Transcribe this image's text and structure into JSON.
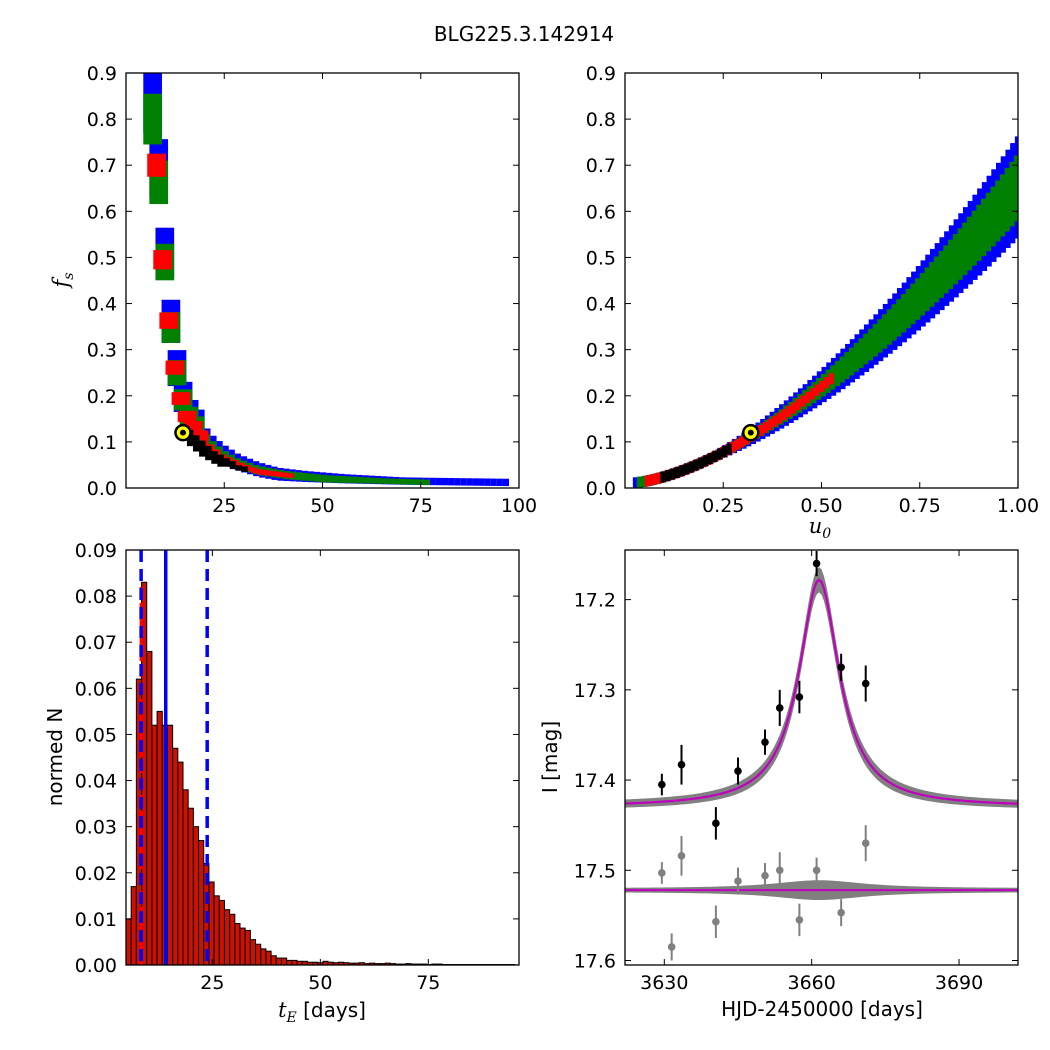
{
  "figure_title": "BLG225.3.142914",
  "colors": {
    "blue": "#0000ff",
    "green": "#008000",
    "red": "#ff0000",
    "black": "#000000",
    "best_fit_marker_fill": "#ffff00",
    "hist_bar": "#cc1100",
    "model_band": "#808080",
    "model_line": "#bf00bf",
    "residual_points": "#808080"
  },
  "chart_data": [
    {
      "type": "heatmap",
      "panel": "top-left",
      "xlabel": "",
      "ylabel_main": "f",
      "ylabel_sub": "s",
      "xlim": [
        0,
        100
      ],
      "ylim": [
        0.0,
        0.9
      ],
      "xticks": [
        25,
        50,
        75,
        100
      ],
      "yticks": [
        0.0,
        0.1,
        0.2,
        0.3,
        0.4,
        0.5,
        0.6,
        0.7,
        0.8,
        0.9
      ],
      "ytick_labels": [
        "0.0",
        "0.1",
        "0.2",
        "0.3",
        "0.4",
        "0.5",
        "0.6",
        "0.7",
        "0.8",
        "0.9"
      ],
      "best_fit": {
        "x": 14.5,
        "y": 0.12
      },
      "regions": [
        {
          "level": "3sigma",
          "color": "blue",
          "curve": [
            [
              6,
              0.85
            ],
            [
              7,
              0.78
            ],
            [
              8,
              0.62
            ],
            [
              9,
              0.52
            ],
            [
              10,
              0.42
            ],
            [
              11,
              0.33
            ],
            [
              12,
              0.27
            ],
            [
              13,
              0.22
            ],
            [
              14,
              0.19
            ],
            [
              15,
              0.165
            ],
            [
              17,
              0.14
            ],
            [
              19,
              0.115
            ],
            [
              21,
              0.095
            ],
            [
              24,
              0.075
            ],
            [
              28,
              0.055
            ],
            [
              33,
              0.04
            ],
            [
              38,
              0.03
            ],
            [
              45,
              0.025
            ],
            [
              55,
              0.02
            ],
            [
              70,
              0.015
            ],
            [
              97,
              0.012
            ]
          ],
          "half_width": [
            0.08,
            0.07,
            0.06,
            0.055,
            0.05,
            0.045,
            0.04,
            0.035,
            0.032,
            0.03,
            0.028,
            0.025,
            0.022,
            0.02,
            0.018,
            0.016,
            0.014,
            0.012,
            0.01,
            0.008,
            0.008
          ]
        },
        {
          "level": "2sigma",
          "color": "green",
          "curve": [
            [
              6,
              0.8
            ],
            [
              7,
              0.74
            ],
            [
              8,
              0.6
            ],
            [
              9,
              0.5
            ],
            [
              10,
              0.4
            ],
            [
              11,
              0.32
            ],
            [
              12,
              0.26
            ],
            [
              13,
              0.21
            ],
            [
              14,
              0.185
            ],
            [
              15,
              0.16
            ],
            [
              17,
              0.135
            ],
            [
              19,
              0.11
            ],
            [
              21,
              0.09
            ],
            [
              24,
              0.07
            ],
            [
              28,
              0.052
            ],
            [
              33,
              0.038
            ],
            [
              40,
              0.028
            ],
            [
              50,
              0.02
            ],
            [
              65,
              0.015
            ],
            [
              77,
              0.012
            ]
          ],
          "half_width": [
            0.055,
            0.05,
            0.045,
            0.04,
            0.036,
            0.032,
            0.028,
            0.025,
            0.022,
            0.02,
            0.018,
            0.016,
            0.015,
            0.013,
            0.011,
            0.01,
            0.009,
            0.008,
            0.006,
            0.006
          ]
        },
        {
          "level": "1sigma",
          "color": "red",
          "curve": [
            [
              7,
              0.7
            ],
            [
              8,
              0.55
            ],
            [
              9,
              0.45
            ],
            [
              10,
              0.37
            ],
            [
              11,
              0.3
            ],
            [
              12,
              0.24
            ],
            [
              13,
              0.2
            ],
            [
              14,
              0.17
            ],
            [
              15,
              0.15
            ],
            [
              17,
              0.125
            ],
            [
              19,
              0.1
            ],
            [
              21,
              0.085
            ],
            [
              24,
              0.065
            ],
            [
              28,
              0.05
            ],
            [
              33,
              0.035
            ],
            [
              42,
              0.026
            ]
          ],
          "half_width": [
            0.025,
            0.022,
            0.02,
            0.018,
            0.016,
            0.015,
            0.014,
            0.013,
            0.012,
            0.011,
            0.01,
            0.009,
            0.008,
            0.007,
            0.006,
            0.005
          ]
        },
        {
          "level": "best",
          "color": "black",
          "curve": [
            [
              14,
              0.12
            ],
            [
              16,
              0.105
            ],
            [
              18,
              0.09
            ],
            [
              20,
              0.075
            ],
            [
              22,
              0.065
            ],
            [
              24,
              0.055
            ],
            [
              27,
              0.045
            ],
            [
              30,
              0.04
            ]
          ],
          "half_width": [
            0.006,
            0.006,
            0.006,
            0.006,
            0.006,
            0.006,
            0.006,
            0.006
          ]
        }
      ]
    },
    {
      "type": "heatmap",
      "panel": "top-right",
      "xlabel_main": "u",
      "xlabel_sub": "0",
      "ylabel": "",
      "xlim": [
        0.0,
        1.0
      ],
      "ylim": [
        0.0,
        0.9
      ],
      "xticks": [
        0.25,
        0.5,
        0.75,
        1.0
      ],
      "xtick_labels": [
        "0.25",
        "0.50",
        "0.75",
        "1.00"
      ],
      "yticks": [
        0.0,
        0.1,
        0.2,
        0.3,
        0.4,
        0.5,
        0.6,
        0.7,
        0.8,
        0.9
      ],
      "ytick_labels": [
        "0.0",
        "0.1",
        "0.2",
        "0.3",
        "0.4",
        "0.5",
        "0.6",
        "0.7",
        "0.8",
        "0.9"
      ],
      "best_fit": {
        "x": 0.32,
        "y": 0.12
      },
      "relation": "fs approx 0.65 * u0^1.6",
      "regions": [
        {
          "level": "3sigma",
          "color": "blue",
          "x_range": [
            0.02,
            1.0
          ],
          "half_width_frac": 0.17
        },
        {
          "level": "2sigma",
          "color": "green",
          "x_range": [
            0.03,
            1.0
          ],
          "half_width_frac": 0.11
        },
        {
          "level": "1sigma",
          "color": "red",
          "x_range": [
            0.05,
            0.52
          ],
          "half_width_frac": 0.045
        },
        {
          "level": "best",
          "color": "black",
          "x_range": [
            0.09,
            0.27
          ],
          "half_width_frac": 0.02
        }
      ]
    },
    {
      "type": "bar",
      "panel": "bottom-left",
      "xlabel_main": "t",
      "xlabel_sub": "E",
      "xlabel_suffix": " [days]",
      "ylabel": "normed N",
      "xlim": [
        5,
        96
      ],
      "ylim": [
        0.0,
        0.09
      ],
      "xticks": [
        25,
        50,
        75
      ],
      "yticks": [
        0.0,
        0.01,
        0.02,
        0.03,
        0.04,
        0.05,
        0.06,
        0.07,
        0.08,
        0.09
      ],
      "ytick_labels": [
        "0.00",
        "0.01",
        "0.02",
        "0.03",
        "0.04",
        "0.05",
        "0.06",
        "0.07",
        "0.08",
        "0.09"
      ],
      "bin_start": 5,
      "bin_width": 1.2,
      "values": [
        0.01,
        0.017,
        0.062,
        0.083,
        0.068,
        0.052,
        0.055,
        0.052,
        0.052,
        0.047,
        0.044,
        0.038,
        0.034,
        0.03,
        0.027,
        0.022,
        0.018,
        0.015,
        0.014,
        0.012,
        0.011,
        0.009,
        0.008,
        0.0075,
        0.0055,
        0.0045,
        0.0035,
        0.003,
        0.002,
        0.0015,
        0.0015,
        0.001,
        0.001,
        0.0008,
        0.0008,
        0.0006,
        0.0006,
        0.0005,
        0.0008,
        0.0006,
        0.0005,
        0.0006,
        0.0005,
        0.0004,
        0.0004,
        0.0005,
        0.0003,
        0.0004,
        0.0003,
        0.0003,
        0.0004,
        0.0003,
        0.0002,
        0.0002,
        0.0003,
        0.0002,
        0.0002,
        0.0002,
        0.0001,
        0.0002,
        0.0002,
        0.0001,
        0.0001,
        0.0001,
        0.0001,
        0.0001,
        0.0001,
        0.0001,
        0.0001,
        0.0001,
        0.0001,
        0.0001,
        0.0001,
        0.0001,
        0.0001
      ],
      "vlines": [
        {
          "x": 8.5,
          "style": "dashed"
        },
        {
          "x": 14.2,
          "style": "solid"
        },
        {
          "x": 23.8,
          "style": "dashed"
        }
      ],
      "red_dashed_line": {
        "x": 8.5
      }
    },
    {
      "type": "scatter",
      "panel": "bottom-right",
      "xlabel": "HJD-2450000 [days]",
      "ylabel": "I [mag]",
      "xlim": [
        3622,
        3702
      ],
      "ylim": [
        17.605,
        17.145
      ],
      "inverted_y": true,
      "xticks": [
        3630,
        3660,
        3690
      ],
      "yticks": [
        17.2,
        17.3,
        17.4,
        17.5,
        17.6
      ],
      "ytick_labels": [
        "17.2",
        "17.3",
        "17.4",
        "17.5",
        "17.6"
      ],
      "model": {
        "t0": 3661.5,
        "baseline": 17.43,
        "peak": 17.178,
        "width": 5.0
      },
      "residual_baseline": 17.522,
      "data_points": [
        {
          "x": 3629.5,
          "y": 17.405,
          "err": 0.012
        },
        {
          "x": 3633.5,
          "y": 17.383,
          "err": 0.022
        },
        {
          "x": 3640.5,
          "y": 17.448,
          "err": 0.018
        },
        {
          "x": 3645.0,
          "y": 17.39,
          "err": 0.015
        },
        {
          "x": 3650.5,
          "y": 17.358,
          "err": 0.014
        },
        {
          "x": 3653.5,
          "y": 17.32,
          "err": 0.02
        },
        {
          "x": 3657.5,
          "y": 17.308,
          "err": 0.018
        },
        {
          "x": 3661.0,
          "y": 17.16,
          "err": 0.014
        },
        {
          "x": 3666.0,
          "y": 17.275,
          "err": 0.015
        },
        {
          "x": 3671.0,
          "y": 17.293,
          "err": 0.02
        }
      ],
      "residual_points": [
        {
          "x": 3629.5,
          "y": 17.503,
          "err": 0.012
        },
        {
          "x": 3631.5,
          "y": 17.585,
          "err": 0.015
        },
        {
          "x": 3633.5,
          "y": 17.484,
          "err": 0.022
        },
        {
          "x": 3640.5,
          "y": 17.557,
          "err": 0.018
        },
        {
          "x": 3645.0,
          "y": 17.512,
          "err": 0.015
        },
        {
          "x": 3650.5,
          "y": 17.506,
          "err": 0.014
        },
        {
          "x": 3653.5,
          "y": 17.5,
          "err": 0.02
        },
        {
          "x": 3657.5,
          "y": 17.555,
          "err": 0.018
        },
        {
          "x": 3661.0,
          "y": 17.5,
          "err": 0.014
        },
        {
          "x": 3666.0,
          "y": 17.547,
          "err": 0.015
        },
        {
          "x": 3671.0,
          "y": 17.47,
          "err": 0.02
        }
      ]
    }
  ]
}
